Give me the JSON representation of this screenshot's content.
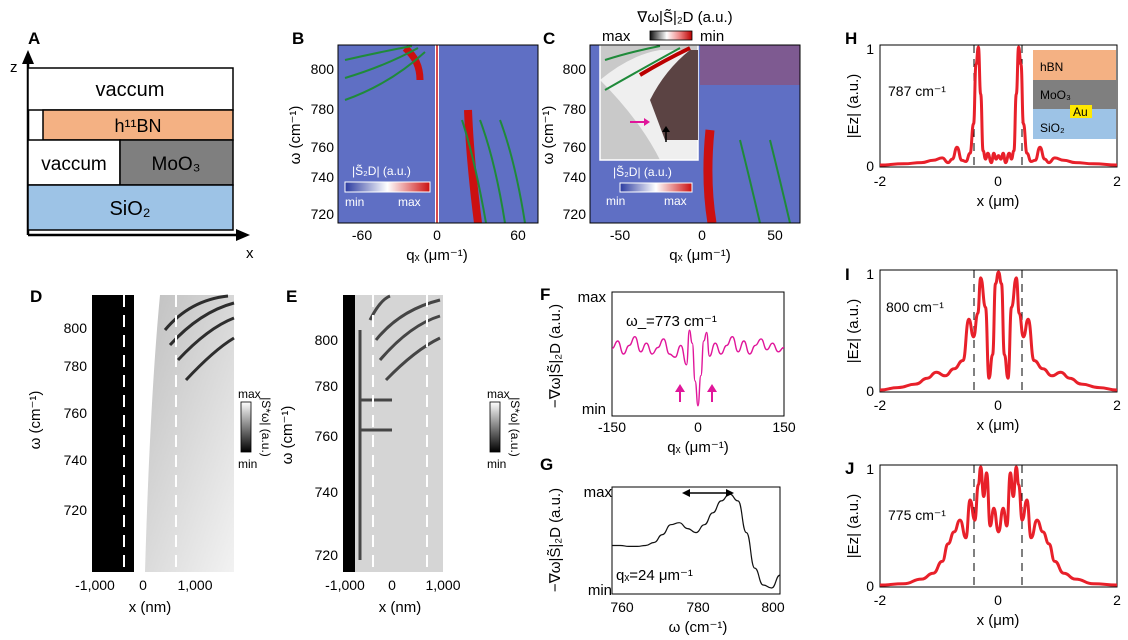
{
  "panels": {
    "A": {
      "label": "A",
      "axis_z": "z",
      "axis_x": "x",
      "layers": [
        {
          "name": "vaccum",
          "color": "#ffffff"
        },
        {
          "name": "h¹¹BN",
          "color": "#f4b183"
        },
        {
          "name": "vaccum",
          "color": "#ffffff"
        },
        {
          "name": "MoO₃",
          "color": "#7f7f7f"
        },
        {
          "name": "SiO₂",
          "color": "#9dc3e6"
        }
      ]
    },
    "B": {
      "label": "B",
      "ylabel": "ω (cm⁻¹)",
      "xlabel": "qₓ (μm⁻¹)",
      "yticks": [
        "800",
        "780",
        "760",
        "740",
        "720"
      ],
      "xticks": [
        "-60",
        "0",
        "60"
      ],
      "colorbar": {
        "title": "|S̃₂D| (a.u.)",
        "min": "min",
        "max": "max"
      }
    },
    "C": {
      "label": "C",
      "ylabel": "ω (cm⁻¹)",
      "xlabel": "qₓ (μm⁻¹)",
      "yticks": [
        "800",
        "780",
        "760",
        "740",
        "720"
      ],
      "xticks": [
        "-50",
        "0",
        "50"
      ],
      "top_colorbar": {
        "title": "∇ω|S̃|₂D (a.u.)",
        "max": "max",
        "min": "min"
      },
      "colorbar": {
        "title": "|S̃₂D| (a.u.)",
        "min": "min",
        "max": "max"
      }
    },
    "D": {
      "label": "D",
      "ylabel": "ω (cm⁻¹)",
      "xlabel": "x (nm)",
      "yticks": [
        "800",
        "780",
        "760",
        "740",
        "720"
      ],
      "xticks": [
        "-1,000",
        "0",
        "1,000"
      ],
      "colorbar": {
        "title": "|S*ω| (a.u.)",
        "max": "max",
        "min": "min"
      }
    },
    "E": {
      "label": "E",
      "ylabel": "ω (cm⁻¹)",
      "xlabel": "x (nm)",
      "yticks": [
        "800",
        "780",
        "760",
        "740",
        "720"
      ],
      "xticks": [
        "-1,000",
        "0",
        "1,000"
      ],
      "colorbar": {
        "title": "|S*ω| (a.u.)",
        "max": "max",
        "min": "min"
      }
    },
    "F": {
      "label": "F",
      "ylabel": "−∇ω|S̃|₂D (a.u.)",
      "xlabel": "qₓ (μm⁻¹)",
      "yticks": [
        "max",
        "min"
      ],
      "xticks": [
        "-150",
        "0",
        "150"
      ],
      "annotation": "ω_=773 cm⁻¹"
    },
    "G": {
      "label": "G",
      "ylabel": "−∇ω|S̃|₂D (a.u.)",
      "xlabel": "ω (cm⁻¹)",
      "yticks": [
        "max",
        "min"
      ],
      "xticks": [
        "760",
        "780",
        "800"
      ],
      "annotation": "qₓ=24 μm⁻¹"
    },
    "H": {
      "label": "H",
      "annotation": "787 cm⁻¹",
      "ylabel": "|Ez| (a.u.)",
      "xlabel": "x (μm)",
      "xticks": [
        "-2",
        "0",
        "2"
      ],
      "yticks": [
        "0",
        "1"
      ],
      "inset": [
        "hBN",
        "MoO₃",
        "Au",
        "SiO₂"
      ]
    },
    "I": {
      "label": "I",
      "annotation": "800 cm⁻¹",
      "ylabel": "|Ez| (a.u.)",
      "xlabel": "x (μm)",
      "xticks": [
        "-2",
        "0",
        "2"
      ],
      "yticks": [
        "0",
        "1"
      ]
    },
    "J": {
      "label": "J",
      "annotation": "775 cm⁻¹",
      "ylabel": "|Ez| (a.u.)",
      "xlabel": "x (μm)",
      "xticks": [
        "-2",
        "0",
        "2"
      ],
      "yticks": [
        "0",
        "1"
      ]
    }
  },
  "colors": {
    "line_red": "#e8202a",
    "line_magenta": "#e0169a",
    "green": "#1f8a3a",
    "map_blue": "#5f6fc4",
    "map_red": "#cc1010"
  },
  "chart_data": [
    {
      "id": "F",
      "type": "line",
      "x_range": [
        -150,
        150
      ],
      "y_range": [
        0,
        1
      ],
      "x": [
        -150,
        -140,
        -130,
        -120,
        -110,
        -100,
        -90,
        -80,
        -70,
        -60,
        -50,
        -40,
        -30,
        -20,
        -15,
        -10,
        -5,
        0,
        5,
        10,
        15,
        20,
        30,
        40,
        50,
        60,
        70,
        80,
        90,
        100,
        110,
        120,
        130,
        140,
        150
      ],
      "y": [
        0.55,
        0.62,
        0.5,
        0.58,
        0.66,
        0.52,
        0.6,
        0.5,
        0.56,
        0.64,
        0.5,
        0.47,
        0.58,
        0.4,
        0.72,
        0.6,
        0.25,
        0.02,
        0.3,
        0.62,
        0.7,
        0.48,
        0.6,
        0.5,
        0.58,
        0.66,
        0.52,
        0.62,
        0.5,
        0.58,
        0.64,
        0.54,
        0.6,
        0.52,
        0.56
      ]
    },
    {
      "id": "G",
      "type": "line",
      "x_range": [
        760,
        800
      ],
      "y_range": [
        0,
        1
      ],
      "x": [
        760,
        762,
        764,
        766,
        768,
        770,
        772,
        774,
        776,
        778,
        780,
        782,
        784,
        786,
        788,
        790,
        792,
        794,
        796,
        798,
        800
      ],
      "y": [
        0.45,
        0.45,
        0.44,
        0.44,
        0.45,
        0.48,
        0.56,
        0.66,
        0.68,
        0.62,
        0.58,
        0.66,
        0.78,
        0.9,
        0.97,
        0.9,
        0.58,
        0.22,
        0.05,
        0.02,
        0.15
      ]
    },
    {
      "id": "H",
      "type": "line",
      "x_range": [
        -2,
        2
      ],
      "y_range": [
        0,
        1
      ],
      "x": [
        -2,
        -1.6,
        -1.3,
        -1.1,
        -0.95,
        -0.85,
        -0.78,
        -0.7,
        -0.62,
        -0.55,
        -0.48,
        -0.42,
        -0.38,
        -0.34,
        -0.3,
        -0.26,
        -0.22,
        -0.18,
        -0.12,
        -0.08,
        -0.04,
        0,
        0.04,
        0.08,
        0.12,
        0.18,
        0.22,
        0.26,
        0.3,
        0.34,
        0.38,
        0.42,
        0.48,
        0.55,
        0.62,
        0.7,
        0.78,
        0.85,
        0.95,
        1.1,
        1.3,
        1.6,
        2
      ],
      "y": [
        0.0,
        0.01,
        0.02,
        0.04,
        0.06,
        0.02,
        0.05,
        0.15,
        0.04,
        0.03,
        0.1,
        0.35,
        0.85,
        1.0,
        0.6,
        0.12,
        0.05,
        0.1,
        0.02,
        0.1,
        0.05,
        0.08,
        0.05,
        0.1,
        0.02,
        0.1,
        0.05,
        0.12,
        0.6,
        1.0,
        0.85,
        0.35,
        0.1,
        0.03,
        0.04,
        0.15,
        0.05,
        0.02,
        0.06,
        0.04,
        0.02,
        0.01,
        0.0
      ]
    },
    {
      "id": "I",
      "type": "line",
      "x_range": [
        -2,
        2
      ],
      "y_range": [
        0,
        1
      ],
      "x": [
        -2,
        -1.7,
        -1.4,
        -1.2,
        -1.05,
        -0.9,
        -0.75,
        -0.6,
        -0.5,
        -0.42,
        -0.35,
        -0.3,
        -0.22,
        -0.16,
        -0.1,
        -0.05,
        0,
        0.05,
        0.1,
        0.16,
        0.22,
        0.3,
        0.35,
        0.42,
        0.5,
        0.6,
        0.75,
        0.9,
        1.05,
        1.2,
        1.4,
        1.7,
        2
      ],
      "y": [
        0.0,
        0.02,
        0.05,
        0.1,
        0.15,
        0.12,
        0.18,
        0.25,
        0.6,
        0.45,
        0.65,
        0.95,
        0.7,
        0.1,
        0.3,
        0.9,
        1.0,
        0.9,
        0.3,
        0.1,
        0.7,
        0.95,
        0.65,
        0.45,
        0.6,
        0.25,
        0.18,
        0.12,
        0.15,
        0.1,
        0.05,
        0.02,
        0.0
      ]
    },
    {
      "id": "J",
      "type": "line",
      "x_range": [
        -2,
        2
      ],
      "y_range": [
        0,
        1
      ],
      "x": [
        -2,
        -1.6,
        -1.3,
        -1.1,
        -0.95,
        -0.85,
        -0.75,
        -0.65,
        -0.55,
        -0.48,
        -0.4,
        -0.34,
        -0.3,
        -0.25,
        -0.2,
        -0.14,
        -0.08,
        0,
        0.08,
        0.14,
        0.2,
        0.25,
        0.3,
        0.34,
        0.4,
        0.48,
        0.55,
        0.65,
        0.75,
        0.85,
        0.95,
        1.1,
        1.3,
        1.6,
        2
      ],
      "y": [
        0.0,
        0.01,
        0.05,
        0.1,
        0.2,
        0.35,
        0.45,
        0.55,
        0.4,
        0.72,
        0.55,
        0.85,
        1.0,
        0.75,
        0.95,
        0.5,
        0.65,
        0.45,
        0.65,
        0.5,
        0.95,
        0.75,
        1.0,
        0.85,
        0.55,
        0.72,
        0.4,
        0.55,
        0.45,
        0.35,
        0.2,
        0.1,
        0.05,
        0.01,
        0.0
      ]
    }
  ]
}
